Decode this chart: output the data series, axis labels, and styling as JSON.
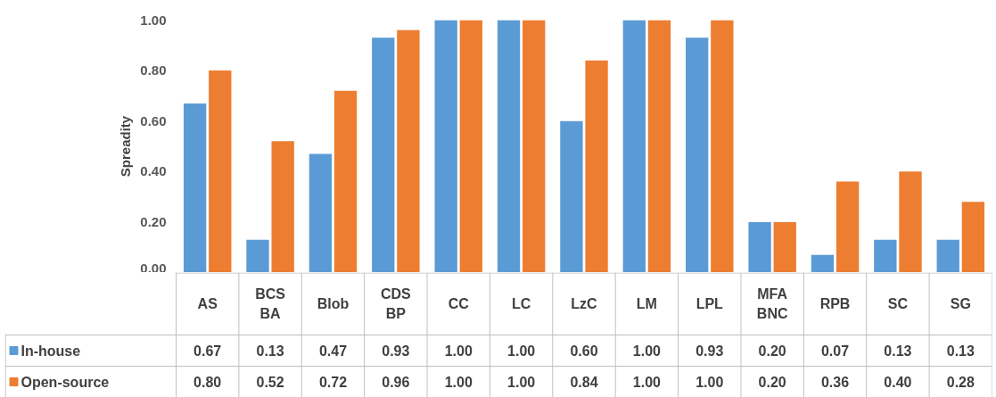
{
  "chart_data": {
    "type": "bar",
    "ylabel": "Spreadity",
    "categories": [
      "AS",
      "BCS\nBA",
      "Blob",
      "CDS\nBP",
      "CC",
      "LC",
      "LzC",
      "LM",
      "LPL",
      "MFA\nBNC",
      "RPB",
      "SC",
      "SG"
    ],
    "series": [
      {
        "name": "In-house",
        "color": "#5b9bd5",
        "values": [
          0.67,
          0.13,
          0.47,
          0.93,
          1.0,
          1.0,
          0.6,
          1.0,
          0.93,
          0.2,
          0.07,
          0.13,
          0.13
        ],
        "value_labels": [
          "0.67",
          "0.13",
          "0.47",
          "0.93",
          "1.00",
          "1.00",
          "0.60",
          "1.00",
          "0.93",
          "0.20",
          "0.07",
          "0.13",
          "0.13"
        ]
      },
      {
        "name": "Open-source",
        "color": "#ed7d31",
        "values": [
          0.8,
          0.52,
          0.72,
          0.96,
          1.0,
          1.0,
          0.84,
          1.0,
          1.0,
          0.2,
          0.36,
          0.4,
          0.28
        ],
        "value_labels": [
          "0.80",
          "0.52",
          "0.72",
          "0.96",
          "1.00",
          "1.00",
          "0.84",
          "1.00",
          "1.00",
          "0.20",
          "0.36",
          "0.40",
          "0.28"
        ]
      }
    ],
    "ylim": [
      0,
      1.0
    ],
    "yticks": [
      {
        "value": 0,
        "label": "0.00"
      },
      {
        "value": 0.2,
        "label": "0.20"
      },
      {
        "value": 0.4,
        "label": "0.40"
      },
      {
        "value": 0.6,
        "label": "0.60"
      },
      {
        "value": 0.8,
        "label": "0.80"
      },
      {
        "value": 1.0,
        "label": "1.00"
      }
    ],
    "grid": false,
    "legend": "bottom"
  }
}
